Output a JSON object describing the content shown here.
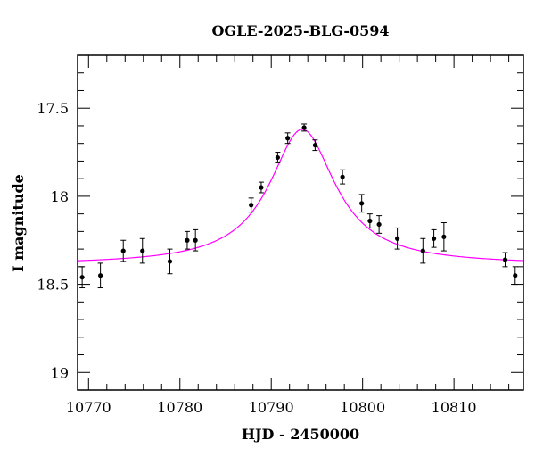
{
  "chart_data": {
    "type": "scatter",
    "title": "OGLE-2025-BLG-0594",
    "xlabel": "HJD - 2450000",
    "ylabel": "I magnitude",
    "xlim": [
      10768.8,
      10817.6
    ],
    "ylim": [
      19.1,
      17.2
    ],
    "y_inverted": true,
    "grid": false,
    "x_ticks": [
      10770,
      10780,
      10790,
      10800,
      10810
    ],
    "x_minor_step": 2,
    "y_ticks": [
      17.5,
      18,
      18.5,
      19
    ],
    "y_tick_labels": [
      "17.5",
      "18",
      "18.5",
      "19"
    ],
    "y_minor_step": 0.1,
    "colors": {
      "points": "#000000",
      "model": "#ff00ff"
    },
    "model": {
      "name": "",
      "type": "microlensing-fit",
      "t0": 10793.4,
      "baseline_mag": 18.39,
      "peak_mag": 17.62,
      "half_width": 4.4
    },
    "series": [
      {
        "name": "",
        "points": [
          {
            "x": 10769.3,
            "y": 18.46,
            "err": 0.06
          },
          {
            "x": 10771.3,
            "y": 18.45,
            "err": 0.07
          },
          {
            "x": 10773.8,
            "y": 18.31,
            "err": 0.06
          },
          {
            "x": 10775.9,
            "y": 18.31,
            "err": 0.07
          },
          {
            "x": 10778.9,
            "y": 18.37,
            "err": 0.07
          },
          {
            "x": 10780.8,
            "y": 18.25,
            "err": 0.05
          },
          {
            "x": 10781.7,
            "y": 18.25,
            "err": 0.06
          },
          {
            "x": 10787.8,
            "y": 18.05,
            "err": 0.04
          },
          {
            "x": 10788.9,
            "y": 17.95,
            "err": 0.03
          },
          {
            "x": 10790.7,
            "y": 17.78,
            "err": 0.03
          },
          {
            "x": 10791.8,
            "y": 17.67,
            "err": 0.03
          },
          {
            "x": 10793.6,
            "y": 17.61,
            "err": 0.02
          },
          {
            "x": 10794.8,
            "y": 17.71,
            "err": 0.03
          },
          {
            "x": 10797.8,
            "y": 17.89,
            "err": 0.04
          },
          {
            "x": 10799.9,
            "y": 18.04,
            "err": 0.05
          },
          {
            "x": 10800.8,
            "y": 18.14,
            "err": 0.04
          },
          {
            "x": 10801.8,
            "y": 18.16,
            "err": 0.05
          },
          {
            "x": 10803.8,
            "y": 18.24,
            "err": 0.06
          },
          {
            "x": 10806.6,
            "y": 18.31,
            "err": 0.07
          },
          {
            "x": 10807.8,
            "y": 18.24,
            "err": 0.05
          },
          {
            "x": 10808.9,
            "y": 18.23,
            "err": 0.08
          },
          {
            "x": 10815.6,
            "y": 18.36,
            "err": 0.04
          },
          {
            "x": 10816.7,
            "y": 18.45,
            "err": 0.05
          }
        ]
      }
    ]
  }
}
